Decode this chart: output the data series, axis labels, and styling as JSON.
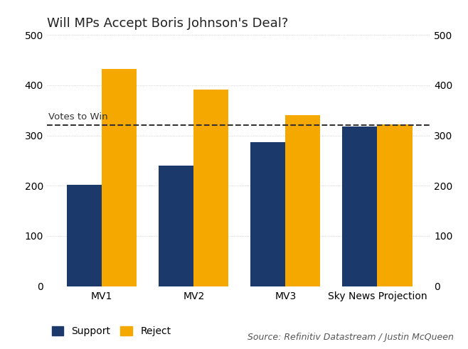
{
  "title": "Will MPs Accept Boris Johnson's Deal?",
  "categories": [
    "MV1",
    "MV2",
    "MV3",
    "Sky News Projection"
  ],
  "support": [
    202,
    240,
    286,
    317
  ],
  "reject": [
    432,
    391,
    340,
    322
  ],
  "votes_to_win": 320,
  "votes_to_win_label": "Votes to Win",
  "support_color": "#1b3a6b",
  "reject_color": "#f5a800",
  "dashed_color": "#333333",
  "grid_color": "#c8c8c8",
  "ylim": [
    0,
    500
  ],
  "yticks": [
    0,
    100,
    200,
    300,
    400,
    500
  ],
  "bar_width": 0.38,
  "source_text": "Source: Refinitiv Datastream / Justin McQueen",
  "legend_support": "Support",
  "legend_reject": "Reject",
  "background_color": "#ffffff",
  "title_fontsize": 13,
  "tick_fontsize": 10,
  "label_fontsize": 9.5,
  "source_fontsize": 9
}
